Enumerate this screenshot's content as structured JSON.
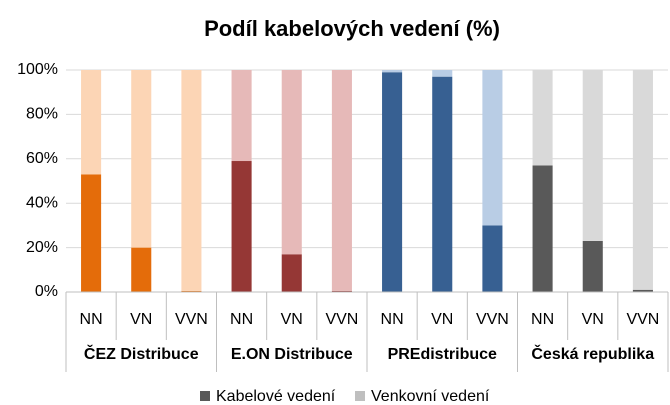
{
  "chart_data": {
    "type": "stacked_bar",
    "title": "Podíl kabelových vedení (%)",
    "categories": [
      "NN",
      "VN",
      "VVN",
      "NN",
      "VN",
      "VVN",
      "NN",
      "VN",
      "VVN",
      "NN",
      "VN",
      "VVN"
    ],
    "groups": [
      "ČEZ Distribuce",
      "E.ON Distribuce",
      "PREdistribuce",
      "Česká republika"
    ],
    "series": [
      {
        "name": "Kabelové vedení",
        "color": "#595959",
        "colors": [
          "#e46c0a",
          "#e46c0a",
          "#e46c0a",
          "#953735",
          "#953735",
          "#953735",
          "#376092",
          "#376092",
          "#376092",
          "#595959",
          "#595959",
          "#595959"
        ],
        "values": [
          53,
          20,
          0.5,
          59,
          17,
          0.5,
          99,
          97,
          30,
          57,
          23,
          1
        ]
      },
      {
        "name": "Venkovní vedení",
        "color": "#bfbfbf",
        "colors": [
          "#fcd5b5",
          "#fcd5b5",
          "#fcd5b5",
          "#e6b9b8",
          "#e6b9b8",
          "#e6b9b8",
          "#b9cde5",
          "#b9cde5",
          "#b9cde5",
          "#d9d9d9",
          "#d9d9d9",
          "#d9d9d9"
        ],
        "values": [
          47,
          80,
          99.5,
          41,
          83,
          99.5,
          1,
          3,
          70,
          43,
          77,
          99
        ]
      }
    ],
    "ylim": [
      0,
      100
    ],
    "yticks": [
      {
        "value": 0,
        "label": "0%"
      },
      {
        "value": 20,
        "label": "20%"
      },
      {
        "value": 40,
        "label": "40%"
      },
      {
        "value": 60,
        "label": "60%"
      },
      {
        "value": 80,
        "label": "80%"
      },
      {
        "value": 100,
        "label": "100%"
      }
    ],
    "grid": true
  }
}
